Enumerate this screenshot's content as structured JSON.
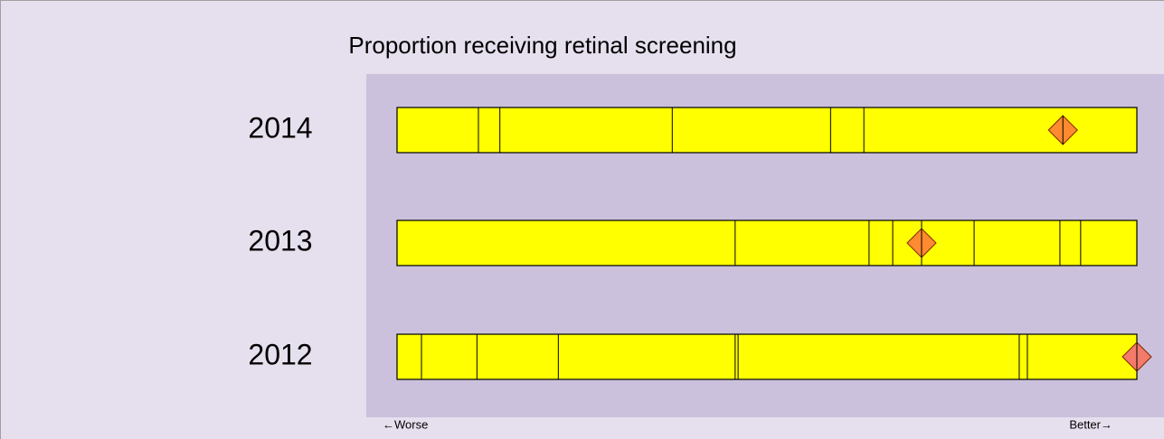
{
  "chart_data": {
    "type": "spine",
    "title": "Proportion receiving retinal screening",
    "categories": [
      "2014",
      "2013",
      "2012"
    ],
    "xlim": [
      0,
      100
    ],
    "dividers": [
      [
        11.0,
        13.9,
        37.2,
        58.6,
        63.1
      ],
      [
        45.7,
        63.8,
        67.0,
        70.9,
        78.0,
        89.6,
        92.4
      ],
      [
        3.3,
        10.8,
        21.8,
        45.7,
        46.1,
        84.1,
        85.2
      ]
    ],
    "markers": [
      90.0,
      70.9,
      100
    ],
    "marker_colors": [
      "#ff8a30",
      "#ff8a30",
      "#f47a6a"
    ],
    "bar_color": "#ffff00",
    "left_label": "←Worse",
    "right_label": "Better→"
  }
}
